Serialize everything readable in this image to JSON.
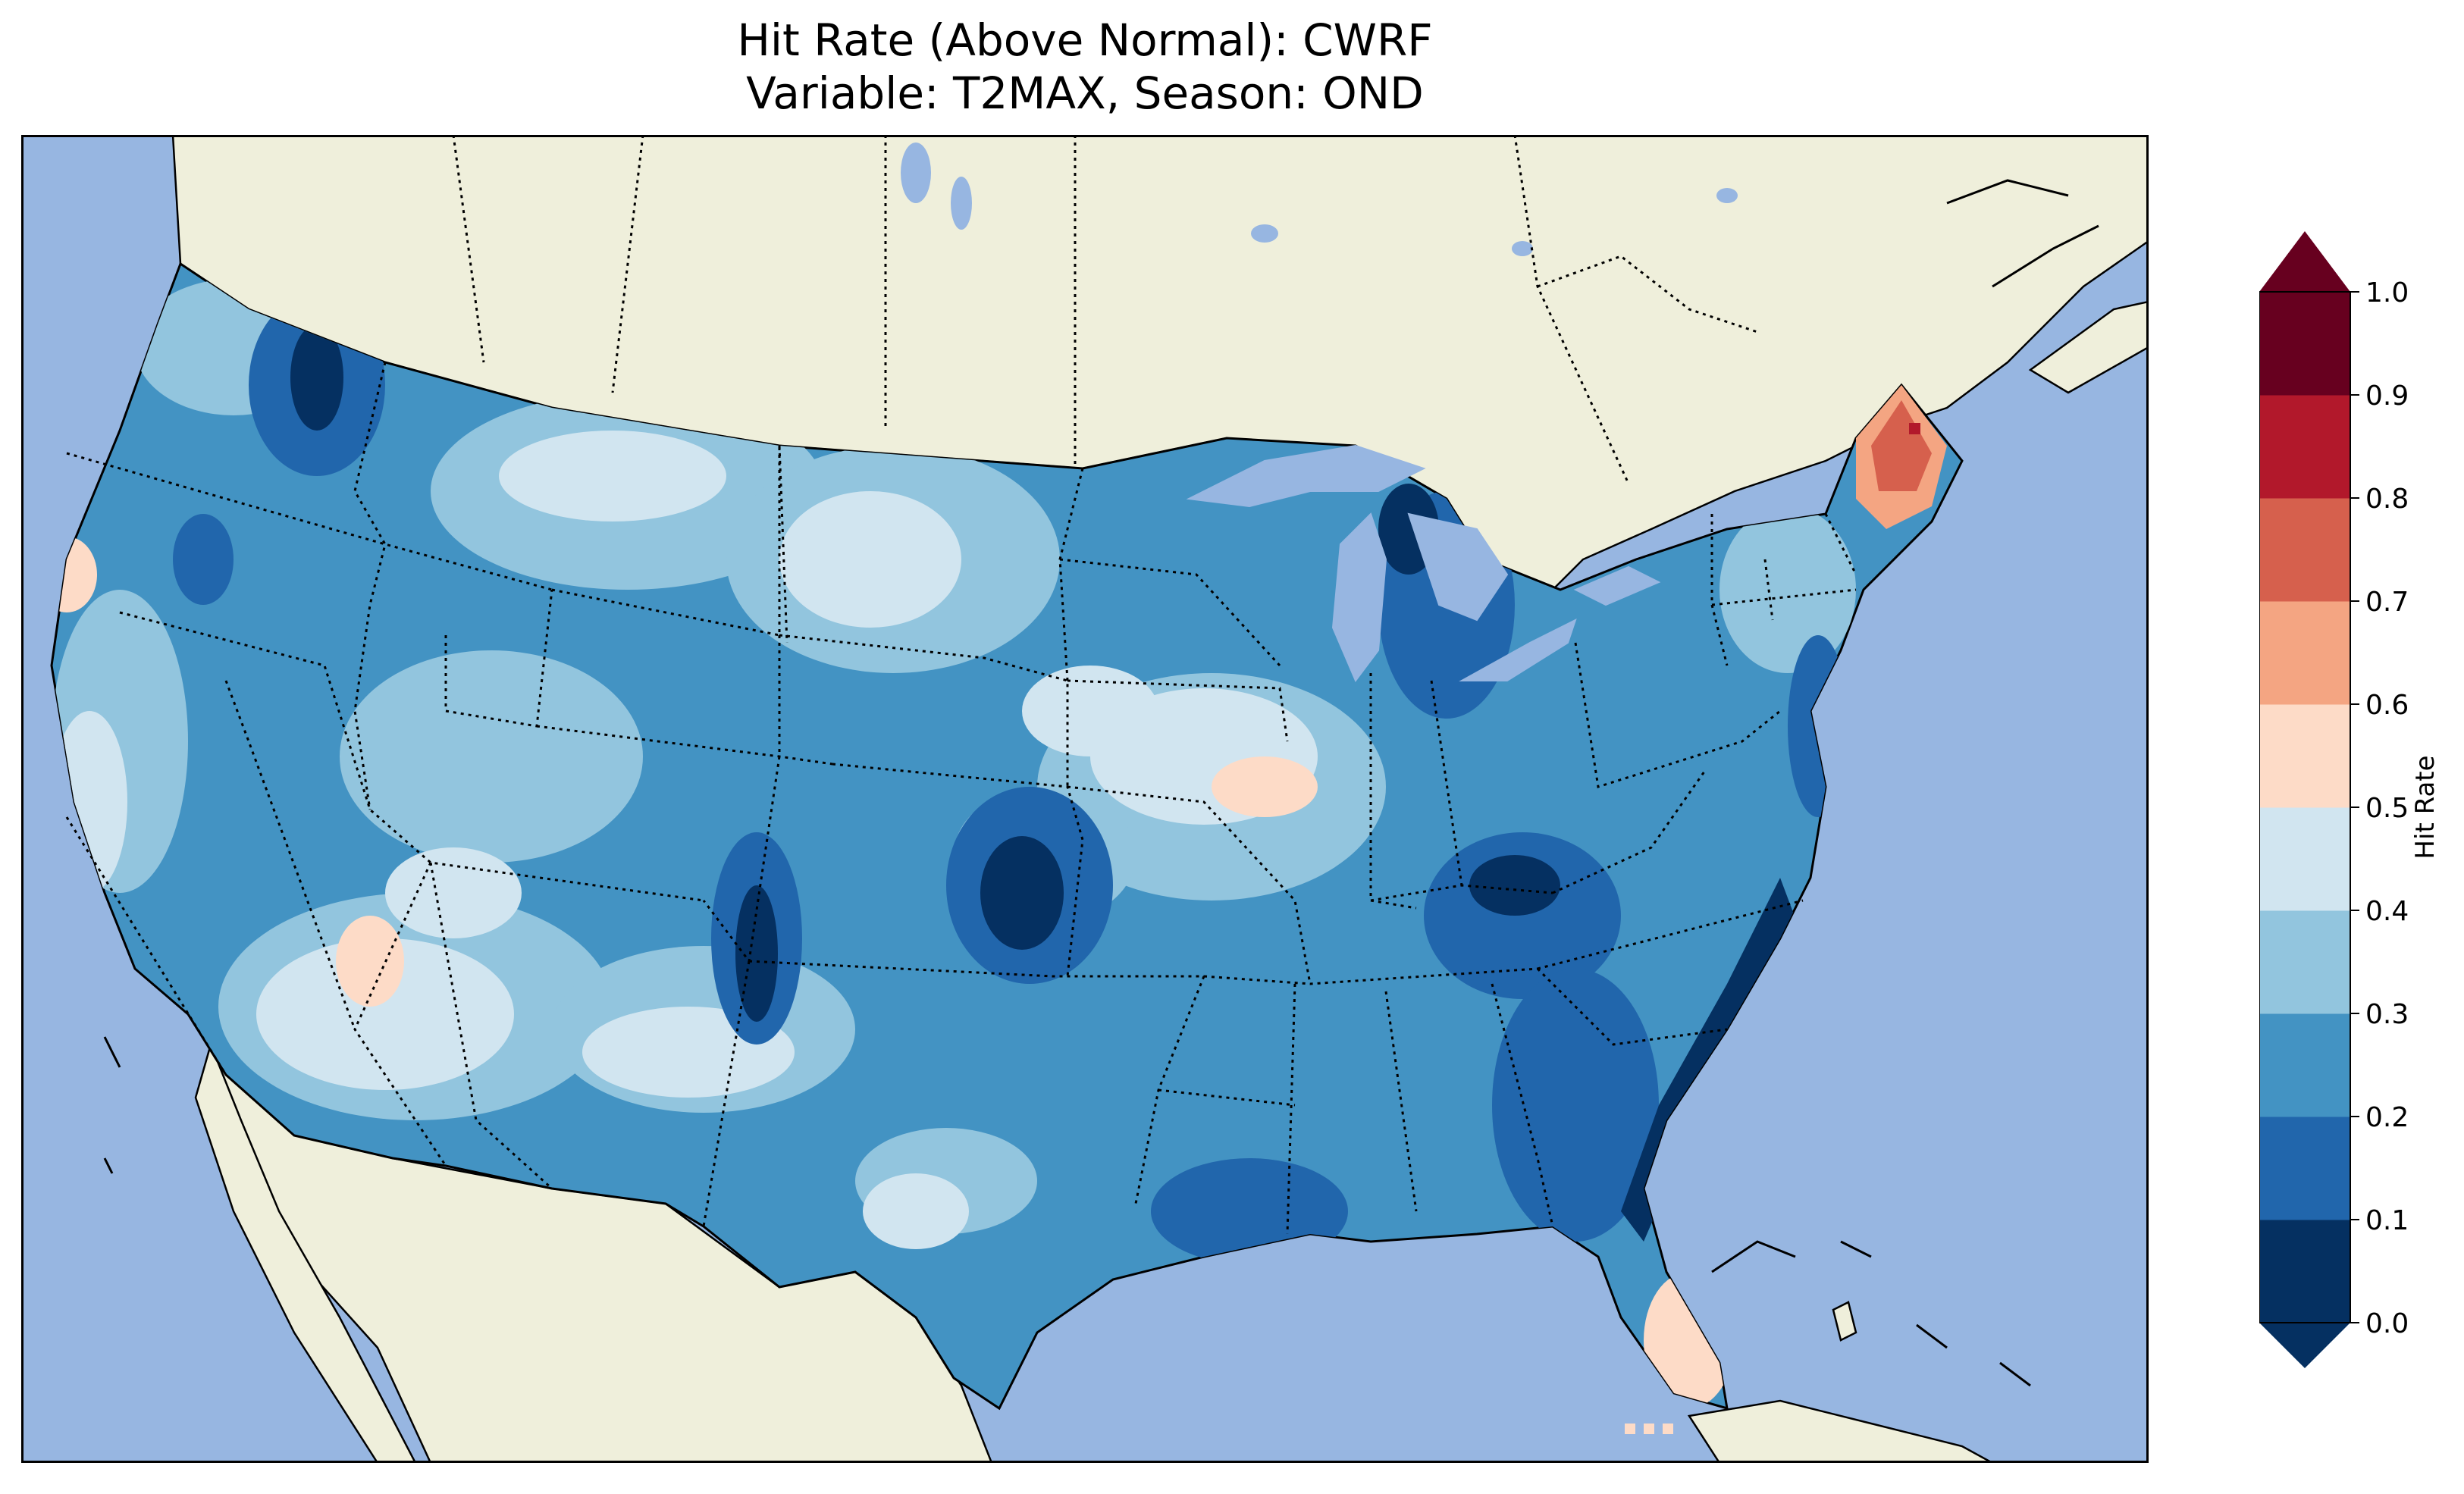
{
  "title": {
    "line1": "Hit Rate (Above Normal): CWRF",
    "line2": "Variable: T2MAX, Season: OND"
  },
  "colorbar": {
    "label": "Hit Rate",
    "ticks": [
      "0.0",
      "0.1",
      "0.2",
      "0.3",
      "0.4",
      "0.5",
      "0.6",
      "0.7",
      "0.8",
      "0.9",
      "1.0"
    ],
    "colors": [
      "#053061",
      "#2166ac",
      "#4393c3",
      "#92c5de",
      "#d1e5f0",
      "#fddbc7",
      "#f4a582",
      "#d6604d",
      "#b2182b",
      "#67001f"
    ],
    "extend": "both"
  },
  "map": {
    "ocean_color": "#97b6e1",
    "land_color": "#efefdb",
    "region": "Contiguous United States",
    "field_levels": [
      0.0,
      0.1,
      0.2,
      0.3,
      0.4,
      0.5,
      0.6,
      0.7,
      0.8,
      0.9,
      1.0
    ]
  }
}
